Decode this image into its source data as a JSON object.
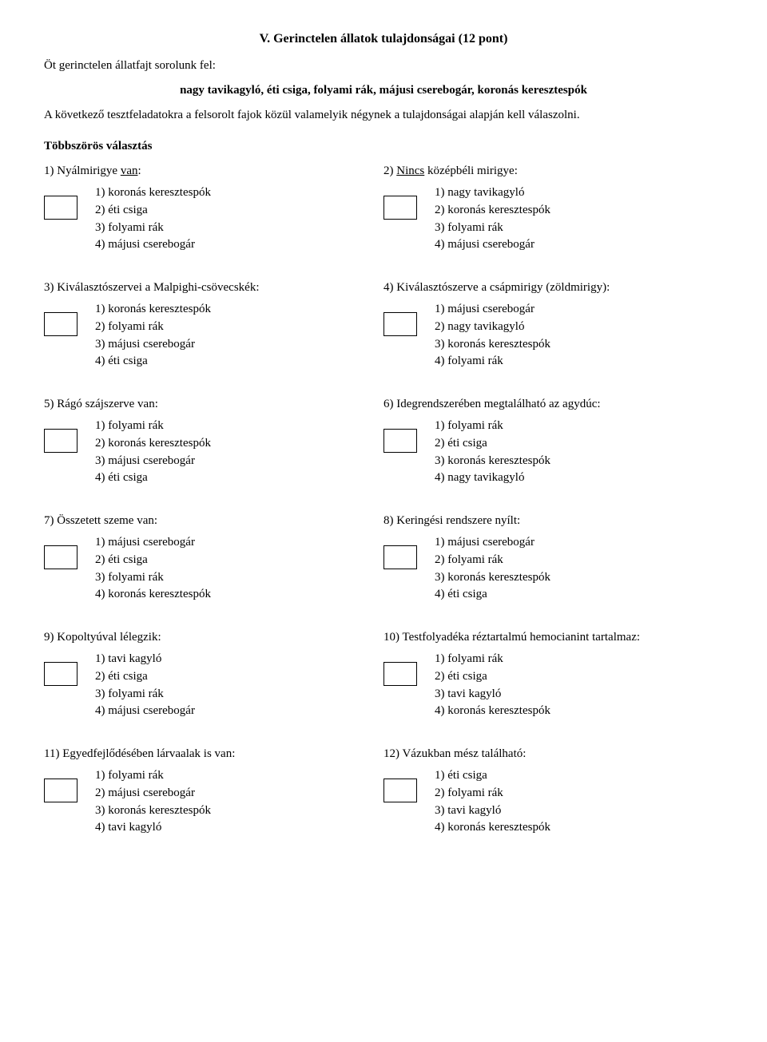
{
  "title": "V. Gerinctelen állatok tulajdonságai (12 pont)",
  "intro1": "Öt gerinctelen állatfajt sorolunk fel:",
  "bold_species": "nagy tavikagyló,  éti csiga,  folyami rák,  májusi cserebogár,  koronás keresztespók",
  "intro2": "A következő tesztfeladatokra a felsorolt fajok közül valamelyik négynek a tulajdonságai alapján kell válaszolni.",
  "section_header": "Többszörös választás",
  "questions": [
    {
      "left": {
        "n": "1",
        "pre": ") Nyálmirigye ",
        "u": "van",
        "post": ":",
        "opts": [
          "1)   koronás keresztespók",
          "2)   éti csiga",
          "3)   folyami rák",
          "4)   májusi cserebogár"
        ]
      },
      "right": {
        "n": "2",
        "pre": ") ",
        "u": "Nincs",
        "post": " középbéli mirigye:",
        "opts": [
          "1)   nagy tavikagyló",
          "2)   koronás keresztespók",
          "3)   folyami rák",
          "4)   májusi cserebogár"
        ]
      }
    },
    {
      "left": {
        "n": "3",
        "pre": ") Kiválasztószervei a Malpighi-csövecskék:",
        "u": "",
        "post": "",
        "opts": [
          "1)   koronás keresztespók",
          "2)   folyami rák",
          "3)   májusi cserebogár",
          "4)   éti csiga"
        ]
      },
      "right": {
        "n": "4",
        "pre": ") Kiválasztószerve a csápmirigy (zöldmirigy):",
        "u": "",
        "post": "",
        "opts": [
          "1)   májusi cserebogár",
          "2)   nagy tavikagyló",
          "3)   koronás keresztespók",
          "4)   folyami rák"
        ]
      }
    },
    {
      "left": {
        "n": "5",
        "pre": ") Rágó szájszerve van:",
        "u": "",
        "post": "",
        "opts": [
          "1)   folyami rák",
          "2)   koronás keresztespók",
          "3)   májusi cserebogár",
          "4)   éti csiga"
        ]
      },
      "right": {
        "n": "6",
        "pre": ") Idegrendszerében megtalálható az agydúc:",
        "u": "",
        "post": "",
        "opts": [
          "1)   folyami rák",
          "2)   éti csiga",
          "3)   koronás keresztespók",
          "4)   nagy tavikagyló"
        ]
      }
    },
    {
      "left": {
        "n": "7",
        "pre": ") Összetett szeme van:",
        "u": "",
        "post": "",
        "opts": [
          "1)   májusi cserebogár",
          "2)   éti csiga",
          "3)   folyami rák",
          "4)   koronás keresztespók"
        ]
      },
      "right": {
        "n": "8",
        "pre": ") Keringési rendszere nyílt:",
        "u": "",
        "post": "",
        "opts": [
          "1)   májusi cserebogár",
          "2)   folyami rák",
          "3)   koronás keresztespók",
          "4)   éti csiga"
        ]
      }
    },
    {
      "left": {
        "n": "9",
        "pre": ") Kopoltyúval lélegzik:",
        "u": "",
        "post": "",
        "opts": [
          "1)   tavi kagyló",
          "2)   éti csiga",
          "3)   folyami rák",
          "4)   májusi cserebogár"
        ]
      },
      "right": {
        "n": "10",
        "pre": ") Testfolyadéka réztartalmú hemocianint tartalmaz:",
        "u": "",
        "post": "",
        "opts": [
          "1)   folyami rák",
          "2)   éti csiga",
          "3)   tavi kagyló",
          "4)   koronás keresztespók"
        ]
      }
    },
    {
      "left": {
        "n": "11",
        "pre": ") Egyedfejlődésében lárvaalak is van:",
        "u": "",
        "post": "",
        "opts": [
          "1)   folyami rák",
          "2)   májusi cserebogár",
          "3)   koronás keresztespók",
          "4)   tavi kagyló"
        ]
      },
      "right": {
        "n": "12",
        "pre": ") Vázukban mész található:",
        "u": "",
        "post": "",
        "opts": [
          "1)   éti csiga",
          "2)   folyami rák",
          "3)   tavi kagyló",
          "4)   koronás keresztespók"
        ]
      }
    }
  ]
}
